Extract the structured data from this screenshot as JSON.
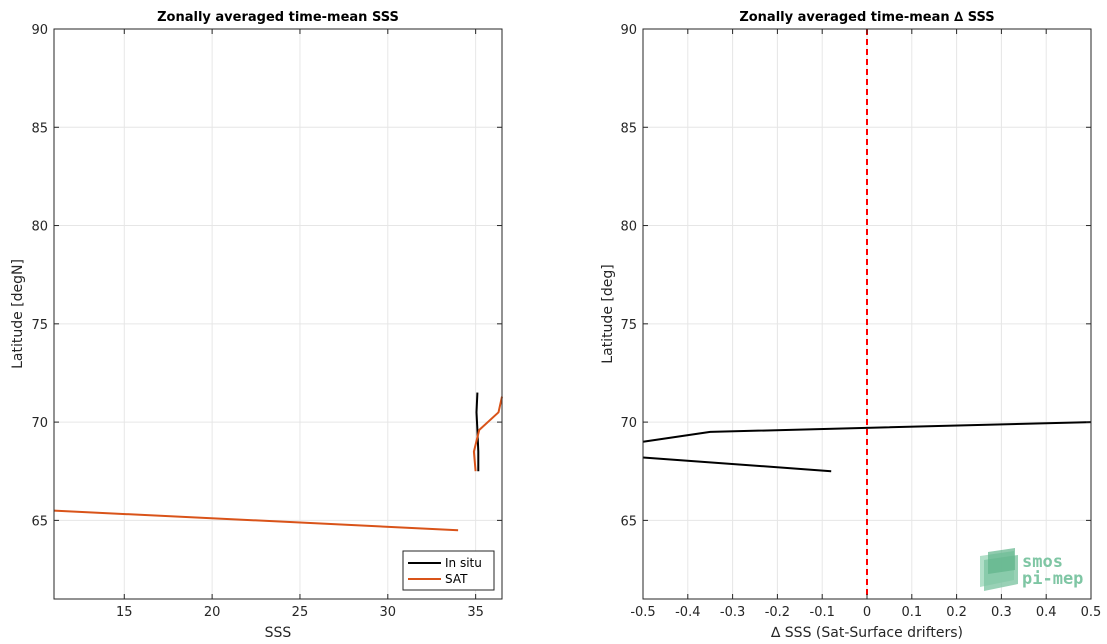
{
  "chart_data": [
    {
      "type": "line",
      "title": "Zonally averaged time-mean SSS",
      "xlabel": "SSS",
      "ylabel": "Latitude [degN]",
      "xlim": [
        11,
        36.5
      ],
      "ylim": [
        61,
        90
      ],
      "xticks": [
        "15",
        "20",
        "25",
        "30",
        "35"
      ],
      "yticks": [
        "65",
        "70",
        "75",
        "80",
        "85",
        "90"
      ],
      "xtick_values": [
        15,
        20,
        25,
        30,
        35
      ],
      "ytick_values": [
        65,
        70,
        75,
        80,
        85,
        90
      ],
      "grid": true,
      "legend_position": "bottom-right",
      "series": [
        {
          "name": "In situ",
          "color": "#000000",
          "points": [
            [
              35.1,
              71.5
            ],
            [
              35.05,
              70.5
            ],
            [
              35.1,
              69.6
            ],
            [
              35.15,
              68.5
            ],
            [
              35.15,
              67.5
            ]
          ]
        },
        {
          "name": "SAT",
          "color": "#d95319",
          "points": [
            [
              36.5,
              71.3
            ],
            [
              36.3,
              70.5
            ],
            [
              35.2,
              69.6
            ],
            [
              34.9,
              68.5
            ],
            [
              35.0,
              67.5
            ]
          ]
        },
        {
          "name": "SAT",
          "color": "#d95319",
          "points": [
            [
              11.0,
              65.5
            ],
            [
              34.0,
              64.5
            ]
          ]
        }
      ]
    },
    {
      "type": "line",
      "title": "Zonally averaged time-mean ∆ SSS",
      "xlabel": "∆ SSS (Sat-Surface drifters)",
      "ylabel": "Latitude [deg]",
      "xlim": [
        -0.5,
        0.5
      ],
      "ylim": [
        61,
        90
      ],
      "xticks": [
        "-0.5",
        "-0.4",
        "-0.3",
        "-0.2",
        "-0.1",
        "0",
        "0.1",
        "0.2",
        "0.3",
        "0.4",
        "0.5"
      ],
      "yticks": [
        "65",
        "70",
        "75",
        "80",
        "85",
        "90"
      ],
      "xtick_values": [
        -0.5,
        -0.4,
        -0.3,
        -0.2,
        -0.1,
        0,
        0.1,
        0.2,
        0.3,
        0.4,
        0.5
      ],
      "ytick_values": [
        65,
        70,
        75,
        80,
        85,
        90
      ],
      "grid": true,
      "reference_line": {
        "x": 0,
        "color": "#ff0000",
        "style": "dashed"
      },
      "series": [
        {
          "color": "#000000",
          "points": [
            [
              -0.5,
              69.0
            ],
            [
              -0.35,
              69.5
            ],
            [
              0.5,
              70.0
            ]
          ]
        },
        {
          "color": "#000000",
          "points": [
            [
              -0.5,
              68.2
            ],
            [
              -0.08,
              67.5
            ]
          ]
        }
      ]
    }
  ],
  "logo": {
    "line1": "smos",
    "line2": "pi-mep"
  }
}
